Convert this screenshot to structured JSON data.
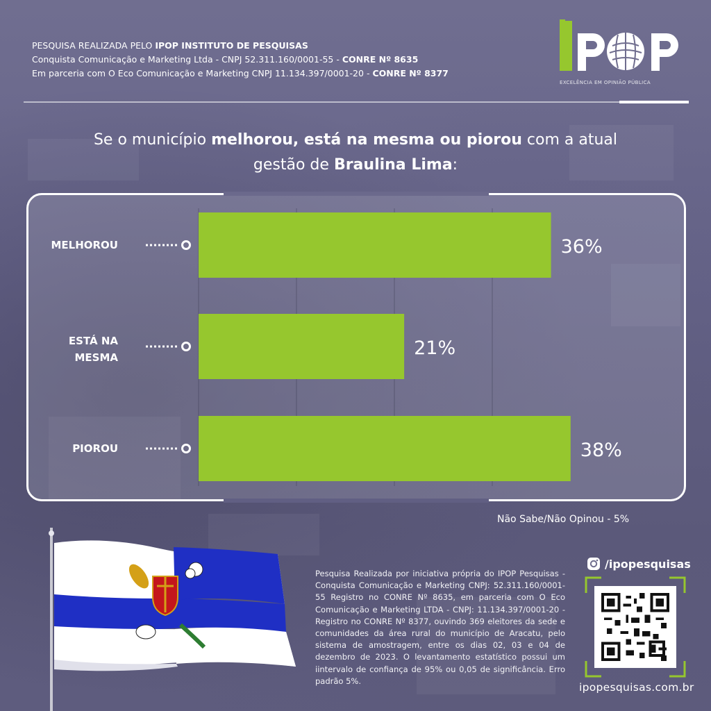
{
  "header": {
    "line1_prefix": "PESQUISA REALIZADA PELO",
    "line1_bold": "IPOP INSTITUTO  DE PESQUISAS",
    "line2_text": "Conquista Comunicação e Marketing Ltda - CNPJ 52.311.160/0001-55 -",
    "line2_bold": "CONRE Nº 8635",
    "line3_text": "Em parceria  com O  Eco Comunicação e Marketing CNPJ 11.134.397/0001-20  -",
    "line3_bold": "CONRE Nº 8377"
  },
  "logo": {
    "text": "IPOP",
    "tagline": "EXCELÊNCIA EM OPINIÃO PÚBLICA"
  },
  "question": {
    "part1": "Se o município",
    "part1_bold": "melhorou, está na mesma ou piorou",
    "part2": "com a atual",
    "part3": "gestão de",
    "part3_bold": "Braulina Lima",
    "part4": ":"
  },
  "chart_data": {
    "type": "bar",
    "orientation": "horizontal",
    "categories": [
      "MELHOROU",
      "ESTÁ NA MESMA",
      "PIOROU"
    ],
    "category_lines": [
      [
        "MELHOROU"
      ],
      [
        "ESTÁ NA",
        "MESMA"
      ],
      [
        "PIOROU"
      ]
    ],
    "values": [
      36,
      21,
      38
    ],
    "value_labels": [
      "36%",
      "21%",
      "38%"
    ],
    "unit": "%",
    "xlim": [
      0,
      40
    ],
    "grid": true,
    "bar_color": "#96c72e"
  },
  "note": "Não Sabe/Não Opinou - 5%",
  "methodology": "Pesquisa Realizada por iniciativa própria do IPOP Pesquisas - Conquista Comunicação e Marketing CNPJ: 52.311.160/0001-55 Registro no CONRE Nº 8635, em parceria com O Eco Comunicação e Marketing LTDA - CNPJ: 11.134.397/0001-20 - Registro no CONRE Nº 8377, ouvindo 369 eleitores da sede e comunidades da área rural do município de Aracatu, pelo sistema de amostragem, entre os dias 02, 03 e 04 de dezembro de 2023. O levantamento estatístico possui um iintervalo de confiança de 95% ou 0,05 de significância. Erro padrão 5%.",
  "social": {
    "icon": "instagram-icon",
    "handle": "/ipopesquisas"
  },
  "website": "ipopesquisas.com.br",
  "colors": {
    "accent_green": "#96c72e",
    "background": "#6f6d8e",
    "flag_blue": "#1f2fc4"
  }
}
